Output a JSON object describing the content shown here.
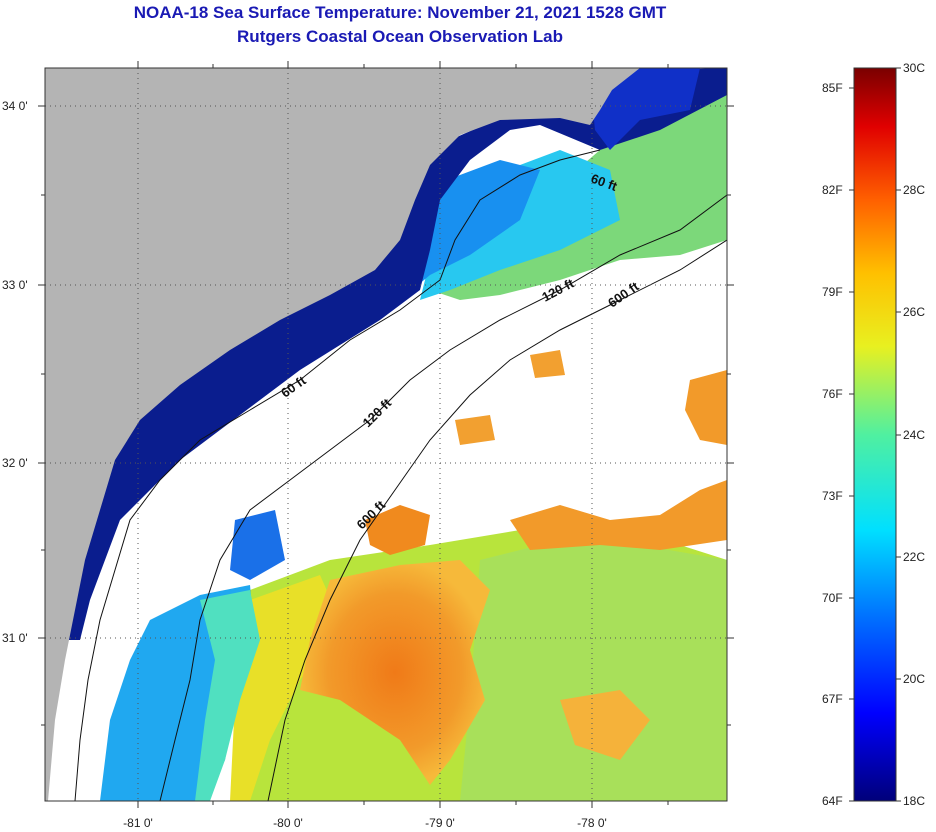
{
  "title": "NOAA-18 Sea Surface Temperature:  November 21, 2021 1528 GMT",
  "subtitle": "Rutgers Coastal Ocean Observation Lab",
  "map": {
    "lat_ticks": [
      "34 0'",
      "33 0'",
      "32 0'",
      "31 0'"
    ],
    "lon_ticks": [
      "-81 0'",
      "-80 0'",
      "-79 0'",
      "-78 0'"
    ],
    "contour_labels": [
      "60 ft",
      "120 ft",
      "600 ft",
      "60 ft",
      "120 ft",
      "600 ft"
    ],
    "colors": {
      "land": "#b4b4b4",
      "cloud": "#ffffff",
      "cold_nearshore": "#0a1d8e",
      "warm_core": "#f08a1e"
    }
  },
  "colorbar": {
    "fahrenheit": [
      "85F",
      "82F",
      "79F",
      "76F",
      "73F",
      "70F",
      "67F",
      "64F"
    ],
    "celsius": [
      "30C",
      "28C",
      "26C",
      "24C",
      "22C",
      "20C",
      "18C"
    ]
  }
}
